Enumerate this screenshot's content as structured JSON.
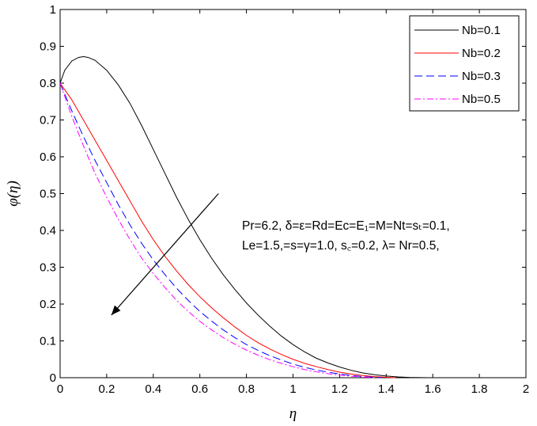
{
  "chart_data": {
    "type": "line",
    "xlabel": "η",
    "ylabel": "φ(η)",
    "xlim": [
      0,
      2
    ],
    "ylim": [
      0,
      1
    ],
    "xticks": [
      0,
      0.2,
      0.4,
      0.6,
      0.8,
      1,
      1.2,
      1.4,
      1.6,
      1.8,
      2
    ],
    "xtick_labels": [
      "0",
      "0.2",
      "0.4",
      "0.6",
      "0.8",
      "1",
      "1.2",
      "1.4",
      "1.6",
      "1.8",
      "2"
    ],
    "yticks": [
      0,
      0.1,
      0.2,
      0.3,
      0.4,
      0.5,
      0.6,
      0.7,
      0.8,
      0.9,
      1
    ],
    "ytick_labels": [
      "0",
      "0.1",
      "0.2",
      "0.3",
      "0.4",
      "0.5",
      "0.6",
      "0.7",
      "0.8",
      "0.9",
      "1"
    ],
    "legend_position": "top-right",
    "series": [
      {
        "name": "Nb=0.1",
        "color": "#000000",
        "dash": "solid",
        "points": [
          [
            0,
            0.8
          ],
          [
            0.02,
            0.835
          ],
          [
            0.05,
            0.86
          ],
          [
            0.08,
            0.87
          ],
          [
            0.1,
            0.872
          ],
          [
            0.12,
            0.87
          ],
          [
            0.15,
            0.862
          ],
          [
            0.2,
            0.835
          ],
          [
            0.25,
            0.795
          ],
          [
            0.3,
            0.745
          ],
          [
            0.35,
            0.685
          ],
          [
            0.4,
            0.62
          ],
          [
            0.45,
            0.555
          ],
          [
            0.5,
            0.49
          ],
          [
            0.55,
            0.43
          ],
          [
            0.6,
            0.375
          ],
          [
            0.65,
            0.325
          ],
          [
            0.7,
            0.28
          ],
          [
            0.75,
            0.24
          ],
          [
            0.8,
            0.203
          ],
          [
            0.85,
            0.17
          ],
          [
            0.9,
            0.14
          ],
          [
            0.95,
            0.113
          ],
          [
            1.0,
            0.09
          ],
          [
            1.05,
            0.07
          ],
          [
            1.1,
            0.053
          ],
          [
            1.15,
            0.04
          ],
          [
            1.2,
            0.029
          ],
          [
            1.25,
            0.02
          ],
          [
            1.3,
            0.013
          ],
          [
            1.35,
            0.008
          ],
          [
            1.4,
            0.0045
          ],
          [
            1.45,
            0.0022
          ],
          [
            1.5,
            0.0008
          ],
          [
            1.55,
            0.0002
          ],
          [
            1.58,
            0
          ]
        ]
      },
      {
        "name": "Nb=0.2",
        "color": "#ff0000",
        "dash": "solid",
        "points": [
          [
            0,
            0.8
          ],
          [
            0.05,
            0.755
          ],
          [
            0.1,
            0.7
          ],
          [
            0.15,
            0.645
          ],
          [
            0.2,
            0.59
          ],
          [
            0.25,
            0.535
          ],
          [
            0.3,
            0.48
          ],
          [
            0.35,
            0.425
          ],
          [
            0.4,
            0.375
          ],
          [
            0.45,
            0.33
          ],
          [
            0.5,
            0.29
          ],
          [
            0.55,
            0.253
          ],
          [
            0.6,
            0.22
          ],
          [
            0.65,
            0.19
          ],
          [
            0.7,
            0.163
          ],
          [
            0.75,
            0.138
          ],
          [
            0.8,
            0.115
          ],
          [
            0.85,
            0.095
          ],
          [
            0.9,
            0.078
          ],
          [
            0.95,
            0.063
          ],
          [
            1.0,
            0.05
          ],
          [
            1.05,
            0.039
          ],
          [
            1.1,
            0.03
          ],
          [
            1.15,
            0.022
          ],
          [
            1.2,
            0.015
          ],
          [
            1.25,
            0.01
          ],
          [
            1.3,
            0.006
          ],
          [
            1.35,
            0.003
          ],
          [
            1.4,
            0.001
          ],
          [
            1.44,
            0
          ]
        ]
      },
      {
        "name": "Nb=0.3",
        "color": "#0000ff",
        "dash": "10,5",
        "points": [
          [
            0,
            0.8
          ],
          [
            0.05,
            0.725
          ],
          [
            0.1,
            0.655
          ],
          [
            0.15,
            0.59
          ],
          [
            0.2,
            0.53
          ],
          [
            0.25,
            0.47
          ],
          [
            0.3,
            0.415
          ],
          [
            0.35,
            0.365
          ],
          [
            0.4,
            0.32
          ],
          [
            0.45,
            0.28
          ],
          [
            0.5,
            0.243
          ],
          [
            0.55,
            0.21
          ],
          [
            0.6,
            0.18
          ],
          [
            0.65,
            0.154
          ],
          [
            0.7,
            0.13
          ],
          [
            0.75,
            0.109
          ],
          [
            0.8,
            0.09
          ],
          [
            0.85,
            0.074
          ],
          [
            0.9,
            0.06
          ],
          [
            0.95,
            0.048
          ],
          [
            1.0,
            0.037
          ],
          [
            1.05,
            0.028
          ],
          [
            1.1,
            0.021
          ],
          [
            1.15,
            0.015
          ],
          [
            1.2,
            0.01
          ],
          [
            1.25,
            0.006
          ],
          [
            1.3,
            0.003
          ],
          [
            1.35,
            0.001
          ],
          [
            1.38,
            0
          ]
        ]
      },
      {
        "name": "Nb=0.5",
        "color": "#ff00ff",
        "dash": "8,3,2,3",
        "points": [
          [
            0,
            0.8
          ],
          [
            0.05,
            0.71
          ],
          [
            0.1,
            0.63
          ],
          [
            0.15,
            0.555
          ],
          [
            0.2,
            0.49
          ],
          [
            0.25,
            0.43
          ],
          [
            0.3,
            0.375
          ],
          [
            0.35,
            0.325
          ],
          [
            0.4,
            0.283
          ],
          [
            0.45,
            0.245
          ],
          [
            0.5,
            0.21
          ],
          [
            0.55,
            0.18
          ],
          [
            0.6,
            0.153
          ],
          [
            0.65,
            0.13
          ],
          [
            0.7,
            0.109
          ],
          [
            0.75,
            0.091
          ],
          [
            0.8,
            0.075
          ],
          [
            0.85,
            0.061
          ],
          [
            0.9,
            0.049
          ],
          [
            0.95,
            0.039
          ],
          [
            1.0,
            0.03
          ],
          [
            1.05,
            0.022
          ],
          [
            1.1,
            0.016
          ],
          [
            1.15,
            0.011
          ],
          [
            1.2,
            0.007
          ],
          [
            1.25,
            0.004
          ],
          [
            1.3,
            0.002
          ],
          [
            1.35,
            0
          ]
        ]
      }
    ],
    "annotation_lines": [
      "Pr=6.2, δ=ε=Rd=Ec=E₁=M=Nt=sₜ=0.1,",
      "Le=1.5,=s=γ=1.0, s꜀=0.2, λ= Nr=0.5,"
    ],
    "arrow": {
      "from": [
        0.68,
        0.5
      ],
      "to": [
        0.22,
        0.17
      ]
    }
  }
}
